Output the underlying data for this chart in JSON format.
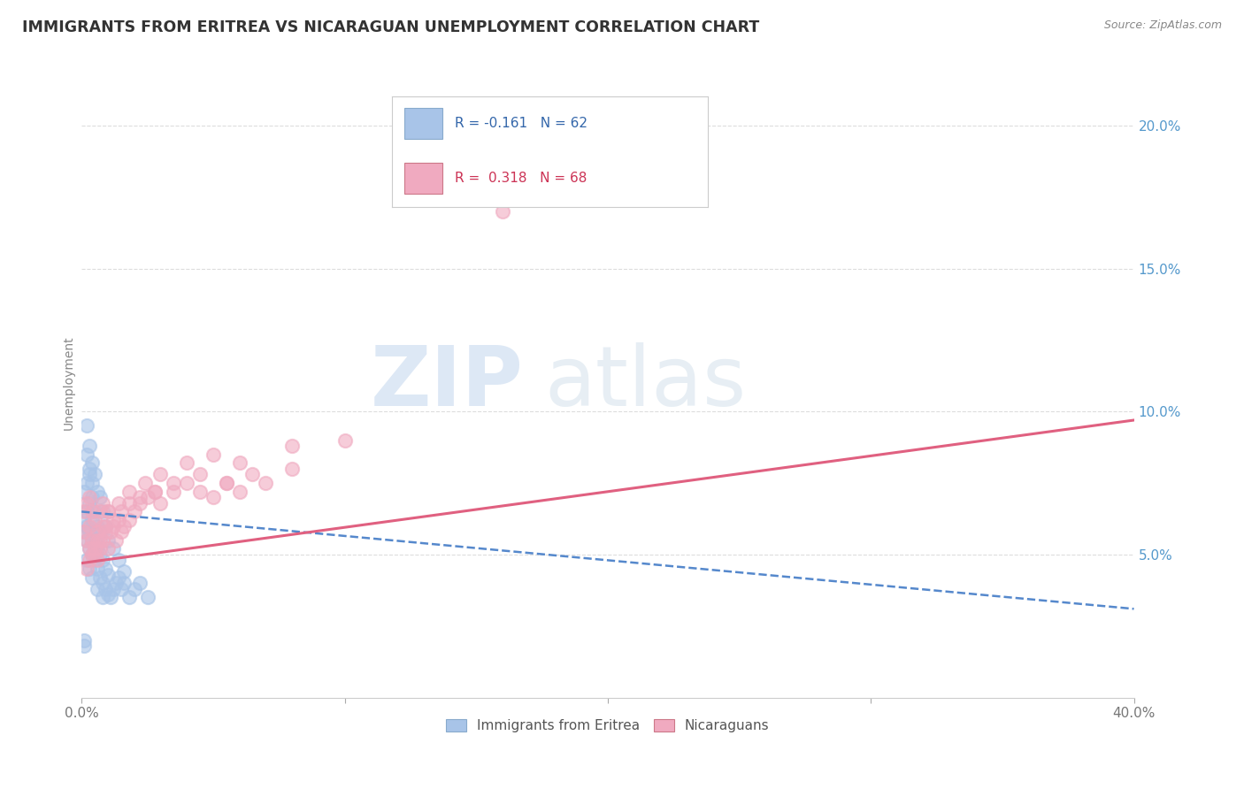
{
  "title": "IMMIGRANTS FROM ERITREA VS NICARAGUAN UNEMPLOYMENT CORRELATION CHART",
  "source": "Source: ZipAtlas.com",
  "ylabel": "Unemployment",
  "yticks": [
    0.05,
    0.1,
    0.15,
    0.2
  ],
  "ytick_labels": [
    "5.0%",
    "10.0%",
    "15.0%",
    "20.0%"
  ],
  "xlim": [
    0.0,
    0.4
  ],
  "ylim": [
    0.0,
    0.22
  ],
  "xtick_positions": [
    0.0,
    0.1,
    0.2,
    0.3,
    0.4
  ],
  "series1_name": "Immigrants from Eritrea",
  "series1_color": "#a8c4e8",
  "series1_line_color": "#5588cc",
  "series1_R": "-0.161",
  "series1_N": "62",
  "series2_name": "Nicaraguans",
  "series2_color": "#f0aac0",
  "series2_line_color": "#e06080",
  "series2_R": "0.318",
  "series2_N": "68",
  "watermark_zip": "ZIP",
  "watermark_atlas": "atlas",
  "background_color": "#ffffff",
  "grid_color": "#dddddd",
  "series1_x": [
    0.001,
    0.001,
    0.001,
    0.002,
    0.002,
    0.002,
    0.002,
    0.003,
    0.003,
    0.003,
    0.003,
    0.004,
    0.004,
    0.004,
    0.004,
    0.005,
    0.005,
    0.005,
    0.006,
    0.006,
    0.006,
    0.007,
    0.007,
    0.007,
    0.008,
    0.008,
    0.009,
    0.009,
    0.01,
    0.01,
    0.011,
    0.012,
    0.013,
    0.014,
    0.015,
    0.016,
    0.018,
    0.02,
    0.022,
    0.025,
    0.002,
    0.002,
    0.003,
    0.003,
    0.004,
    0.004,
    0.005,
    0.006,
    0.007,
    0.008,
    0.009,
    0.01,
    0.012,
    0.014,
    0.016,
    0.002,
    0.003,
    0.004,
    0.006,
    0.008,
    0.001,
    0.001
  ],
  "series1_y": [
    0.058,
    0.062,
    0.072,
    0.055,
    0.06,
    0.065,
    0.075,
    0.052,
    0.058,
    0.068,
    0.078,
    0.05,
    0.055,
    0.062,
    0.07,
    0.048,
    0.055,
    0.065,
    0.045,
    0.052,
    0.06,
    0.042,
    0.05,
    0.058,
    0.04,
    0.048,
    0.038,
    0.045,
    0.036,
    0.043,
    0.035,
    0.038,
    0.04,
    0.042,
    0.038,
    0.04,
    0.035,
    0.038,
    0.04,
    0.035,
    0.085,
    0.095,
    0.08,
    0.088,
    0.075,
    0.082,
    0.078,
    0.072,
    0.07,
    0.065,
    0.06,
    0.055,
    0.052,
    0.048,
    0.044,
    0.048,
    0.045,
    0.042,
    0.038,
    0.035,
    0.02,
    0.018
  ],
  "series2_x": [
    0.001,
    0.001,
    0.002,
    0.002,
    0.003,
    0.003,
    0.003,
    0.004,
    0.004,
    0.005,
    0.005,
    0.006,
    0.006,
    0.007,
    0.007,
    0.008,
    0.008,
    0.009,
    0.01,
    0.01,
    0.011,
    0.012,
    0.013,
    0.014,
    0.015,
    0.016,
    0.018,
    0.02,
    0.022,
    0.025,
    0.028,
    0.03,
    0.035,
    0.04,
    0.045,
    0.05,
    0.055,
    0.06,
    0.07,
    0.08,
    0.003,
    0.005,
    0.007,
    0.009,
    0.012,
    0.015,
    0.018,
    0.022,
    0.028,
    0.035,
    0.045,
    0.055,
    0.065,
    0.002,
    0.004,
    0.006,
    0.008,
    0.01,
    0.014,
    0.018,
    0.024,
    0.03,
    0.04,
    0.05,
    0.06,
    0.08,
    0.1,
    0.16
  ],
  "series2_y": [
    0.058,
    0.065,
    0.055,
    0.068,
    0.052,
    0.06,
    0.07,
    0.055,
    0.065,
    0.05,
    0.062,
    0.048,
    0.058,
    0.052,
    0.065,
    0.055,
    0.068,
    0.06,
    0.052,
    0.065,
    0.058,
    0.06,
    0.055,
    0.062,
    0.058,
    0.06,
    0.062,
    0.065,
    0.068,
    0.07,
    0.072,
    0.068,
    0.072,
    0.075,
    0.078,
    0.07,
    0.075,
    0.072,
    0.075,
    0.08,
    0.048,
    0.052,
    0.055,
    0.058,
    0.062,
    0.065,
    0.068,
    0.07,
    0.072,
    0.075,
    0.072,
    0.075,
    0.078,
    0.045,
    0.05,
    0.055,
    0.06,
    0.065,
    0.068,
    0.072,
    0.075,
    0.078,
    0.082,
    0.085,
    0.082,
    0.088,
    0.09,
    0.17
  ]
}
